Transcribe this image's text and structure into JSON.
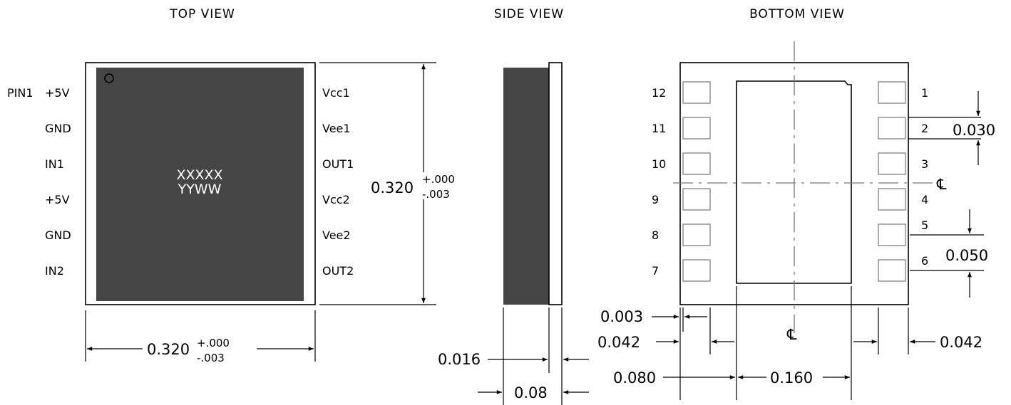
{
  "titles": {
    "top": "TOP VIEW",
    "side": "SIDE VIEW",
    "bottom": "BOTTOM VIEW"
  },
  "marking": {
    "line1": "XXXXX",
    "line2": "YYWW"
  },
  "pin1_label": "PIN1",
  "left_pins": [
    "+5V",
    "GND",
    "IN1",
    "+5V",
    "GND",
    "IN2"
  ],
  "right_pins": [
    "Vcc1",
    "Vee1",
    "OUT1",
    "Vcc2",
    "Vee2",
    "OUT2"
  ],
  "bottom_pins_left": [
    "12",
    "11",
    "10",
    "9",
    "8",
    "7"
  ],
  "bottom_pins_right": [
    "1",
    "2",
    "3",
    "4",
    "5",
    "6"
  ],
  "dims": {
    "height_main": "0.320",
    "tol_plus": "+.000",
    "tol_minus": "-.003",
    "width_main": "0.320",
    "side_thickness": "0.016",
    "side_body": "0.08",
    "pad_width": "0.030",
    "pitch": "0.050",
    "edge_gap": "0.003",
    "pad_len_left": "0.042",
    "pad_len_right": "0.042",
    "offset": "0.080",
    "center_width": "0.160"
  },
  "centerline_symbol": "℄"
}
